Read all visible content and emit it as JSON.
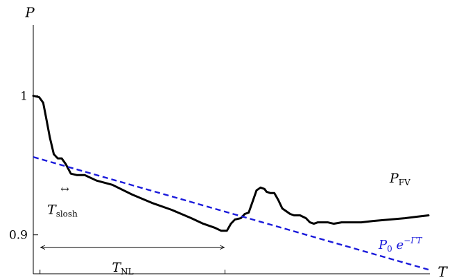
{
  "chart_data": {
    "type": "line",
    "xlabel": "T",
    "ylabel": "P",
    "xlim": [
      0,
      1
    ],
    "ylim": [
      0.872,
      1.05
    ],
    "yticks": [
      {
        "value": 1.0,
        "label": "1"
      },
      {
        "value": 0.9,
        "label": "0.9"
      }
    ],
    "xticks": [
      0.017,
      0.485
    ],
    "grid": false,
    "series": [
      {
        "name": "P_FV",
        "label_main": "P",
        "label_sub": "FV",
        "color": "#000000",
        "style": "solid",
        "x": [
          0.0,
          0.015,
          0.025,
          0.032,
          0.042,
          0.052,
          0.062,
          0.072,
          0.082,
          0.095,
          0.11,
          0.13,
          0.16,
          0.2,
          0.25,
          0.3,
          0.35,
          0.4,
          0.43,
          0.46,
          0.475,
          0.49,
          0.5,
          0.51,
          0.525,
          0.535,
          0.545,
          0.555,
          0.565,
          0.575,
          0.585,
          0.59,
          0.6,
          0.61,
          0.62,
          0.63,
          0.64,
          0.65,
          0.66,
          0.675,
          0.69,
          0.7,
          0.71,
          0.72,
          0.73,
          0.745,
          0.76,
          0.78,
          0.8,
          0.83,
          0.86,
          0.9,
          0.94,
          0.97,
          1.0
        ],
        "y": [
          1.0,
          0.999,
          0.995,
          0.985,
          0.97,
          0.958,
          0.955,
          0.955,
          0.951,
          0.944,
          0.943,
          0.943,
          0.939,
          0.936,
          0.929,
          0.923,
          0.918,
          0.912,
          0.908,
          0.905,
          0.903,
          0.903,
          0.908,
          0.911,
          0.912,
          0.915,
          0.916,
          0.924,
          0.932,
          0.934,
          0.933,
          0.931,
          0.93,
          0.93,
          0.925,
          0.919,
          0.917,
          0.915,
          0.914,
          0.914,
          0.912,
          0.909,
          0.908,
          0.909,
          0.909,
          0.909,
          0.908,
          0.909,
          0.909,
          0.909,
          0.91,
          0.911,
          0.912,
          0.913,
          0.914
        ]
      },
      {
        "name": "P0 e^{-ΓT}",
        "label_main": "P",
        "label_sub": "0",
        "label_base": " e",
        "label_exp": "−ΓT",
        "color": "#1a1adb",
        "style": "dashed",
        "x": [
          0.0,
          1.0
        ],
        "y": [
          0.956,
          0.875
        ]
      }
    ],
    "annotations": [
      {
        "name": "T_slosh",
        "main": "T",
        "sub": "slosh",
        "arrow": "↔",
        "x_from": 0.065,
        "x_to": 0.095,
        "y_arrow": 0.933
      },
      {
        "name": "T_NL",
        "main": "T",
        "sub": "NL",
        "x_from": 0.017,
        "x_to": 0.485,
        "y_arrow": 0.891
      }
    ]
  }
}
